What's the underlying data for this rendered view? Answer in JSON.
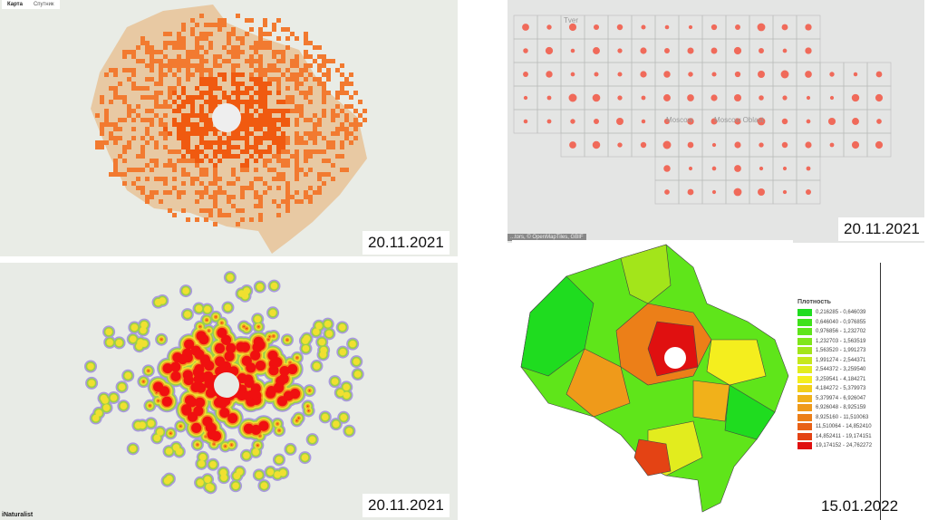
{
  "panels": [
    {
      "date": "20.11.2021",
      "tabs": [
        "Карта",
        "Спутник"
      ],
      "active_tab": "Карта"
    },
    {
      "date": "20.11.2021",
      "labels": [
        "Tver",
        "Moscow",
        "Moscow Oblast"
      ],
      "attribution": "...tors, © OpenMapTiles, GBIF"
    },
    {
      "date": "20.11.2021",
      "brand": "iNaturalist"
    },
    {
      "date": "15.01.2022",
      "legend": {
        "title": "Плотность",
        "items": [
          {
            "range": "0,216285 - 0,646039",
            "color": "#1fdc1f"
          },
          {
            "range": "0,646040 - 0,976855",
            "color": "#3fe21a"
          },
          {
            "range": "0,976856 - 1,232702",
            "color": "#5fe51a"
          },
          {
            "range": "1,232703 - 1,563519",
            "color": "#80e61a"
          },
          {
            "range": "1,563520 - 1,991273",
            "color": "#a3e51a"
          },
          {
            "range": "1,991274 - 2,544371",
            "color": "#c6e81c"
          },
          {
            "range": "2,544372 - 3,259540",
            "color": "#e2ec1e"
          },
          {
            "range": "3,259541 - 4,184271",
            "color": "#f4ee1e"
          },
          {
            "range": "4,184272 - 5,379973",
            "color": "#f2cf1a"
          },
          {
            "range": "5,379974 - 6,926047",
            "color": "#f1b11a"
          },
          {
            "range": "6,926048 - 8,925159",
            "color": "#ef9a1a"
          },
          {
            "range": "8,925160 - 11,510063",
            "color": "#ec7f18"
          },
          {
            "range": "11,510064 - 14,852410",
            "color": "#e86116"
          },
          {
            "range": "14,852411 - 19,174151",
            "color": "#e44314"
          },
          {
            "range": "19,174152 - 24,762272",
            "color": "#e01010"
          }
        ]
      }
    }
  ]
}
